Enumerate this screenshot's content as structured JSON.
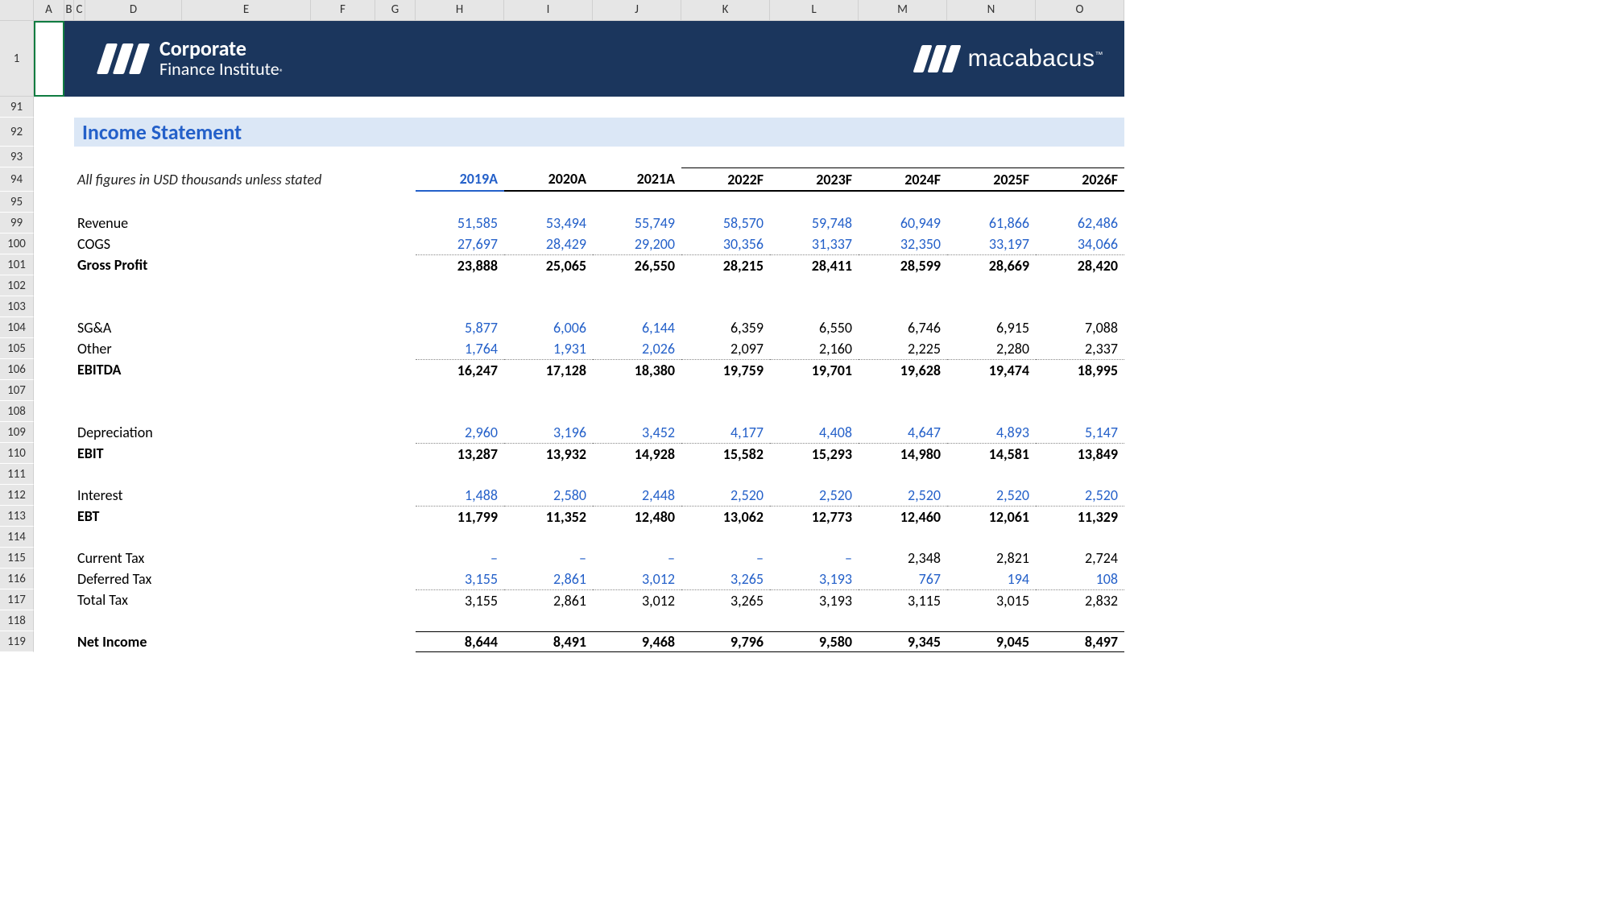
{
  "columns": [
    "",
    "A",
    "B",
    "C",
    "D",
    "E",
    "F",
    "G",
    "H",
    "I",
    "J",
    "K",
    "L",
    "M",
    "N",
    "O"
  ],
  "row_numbers_top": "1",
  "row_numbers": [
    "91",
    "92",
    "93",
    "94",
    "95",
    "99",
    "100",
    "101",
    "102",
    "103",
    "104",
    "105",
    "106",
    "107",
    "108",
    "109",
    "110",
    "111",
    "112",
    "113",
    "114",
    "115",
    "116",
    "117",
    "118",
    "119"
  ],
  "banner": {
    "cfi_line1": "Corporate",
    "cfi_line2": "Finance Institute",
    "mac": "macabacus"
  },
  "title": "Income Statement",
  "subtitle": "All figures in USD thousands unless stated",
  "years": [
    "2019A",
    "2020A",
    "2021A",
    "2022F",
    "2023F",
    "2024F",
    "2025F",
    "2026F"
  ],
  "rows": {
    "revenue": {
      "label": "Revenue",
      "vals": [
        "51,585",
        "53,494",
        "55,749",
        "58,570",
        "59,748",
        "60,949",
        "61,866",
        "62,486"
      ],
      "link": true
    },
    "cogs": {
      "label": "COGS",
      "vals": [
        "27,697",
        "28,429",
        "29,200",
        "30,356",
        "31,337",
        "32,350",
        "33,197",
        "34,066"
      ],
      "link": true
    },
    "gross": {
      "label": "Gross Profit",
      "vals": [
        "23,888",
        "25,065",
        "26,550",
        "28,215",
        "28,411",
        "28,599",
        "28,669",
        "28,420"
      ],
      "bold": true
    },
    "sga": {
      "label": "SG&A",
      "vals": [
        "5,877",
        "6,006",
        "6,144",
        "6,359",
        "6,550",
        "6,746",
        "6,915",
        "7,088"
      ],
      "link": [
        true,
        true,
        true,
        false,
        false,
        false,
        false,
        false
      ]
    },
    "other": {
      "label": "Other",
      "vals": [
        "1,764",
        "1,931",
        "2,026",
        "2,097",
        "2,160",
        "2,225",
        "2,280",
        "2,337"
      ],
      "link": [
        true,
        true,
        true,
        false,
        false,
        false,
        false,
        false
      ]
    },
    "ebitda": {
      "label": "EBITDA",
      "vals": [
        "16,247",
        "17,128",
        "18,380",
        "19,759",
        "19,701",
        "19,628",
        "19,474",
        "18,995"
      ],
      "bold": true
    },
    "dep": {
      "label": "Depreciation",
      "vals": [
        "2,960",
        "3,196",
        "3,452",
        "4,177",
        "4,408",
        "4,647",
        "4,893",
        "5,147"
      ],
      "link": true
    },
    "ebit": {
      "label": "EBIT",
      "vals": [
        "13,287",
        "13,932",
        "14,928",
        "15,582",
        "15,293",
        "14,980",
        "14,581",
        "13,849"
      ],
      "bold": true
    },
    "int": {
      "label": "Interest",
      "vals": [
        "1,488",
        "2,580",
        "2,448",
        "2,520",
        "2,520",
        "2,520",
        "2,520",
        "2,520"
      ],
      "link": true
    },
    "ebt": {
      "label": "EBT",
      "vals": [
        "11,799",
        "11,352",
        "12,480",
        "13,062",
        "12,773",
        "12,460",
        "12,061",
        "11,329"
      ],
      "bold": true
    },
    "curtax": {
      "label": "Current Tax",
      "vals": [
        "–",
        "–",
        "–",
        "–",
        "–",
        "2,348",
        "2,821",
        "2,724"
      ],
      "link": [
        true,
        true,
        true,
        true,
        true,
        false,
        false,
        false
      ],
      "dash": [
        0,
        1,
        2,
        3,
        4
      ]
    },
    "deftax": {
      "label": "Deferred Tax",
      "vals": [
        "3,155",
        "2,861",
        "3,012",
        "3,265",
        "3,193",
        "767",
        "194",
        "108"
      ],
      "link": true
    },
    "tottax": {
      "label": "Total Tax",
      "vals": [
        "3,155",
        "2,861",
        "3,012",
        "3,265",
        "3,193",
        "3,115",
        "3,015",
        "2,832"
      ]
    },
    "netinc": {
      "label": "Net Income",
      "vals": [
        "8,644",
        "8,491",
        "9,468",
        "9,796",
        "9,580",
        "9,345",
        "9,045",
        "8,497"
      ],
      "bold": true
    }
  },
  "colors": {
    "banner_bg": "#1b365d",
    "title_bg": "#dbe7f6",
    "title_fg": "#2460c9",
    "link": "#2460c9",
    "row_hdr_bg": "#e6e6e6",
    "selection": "#107c41"
  }
}
